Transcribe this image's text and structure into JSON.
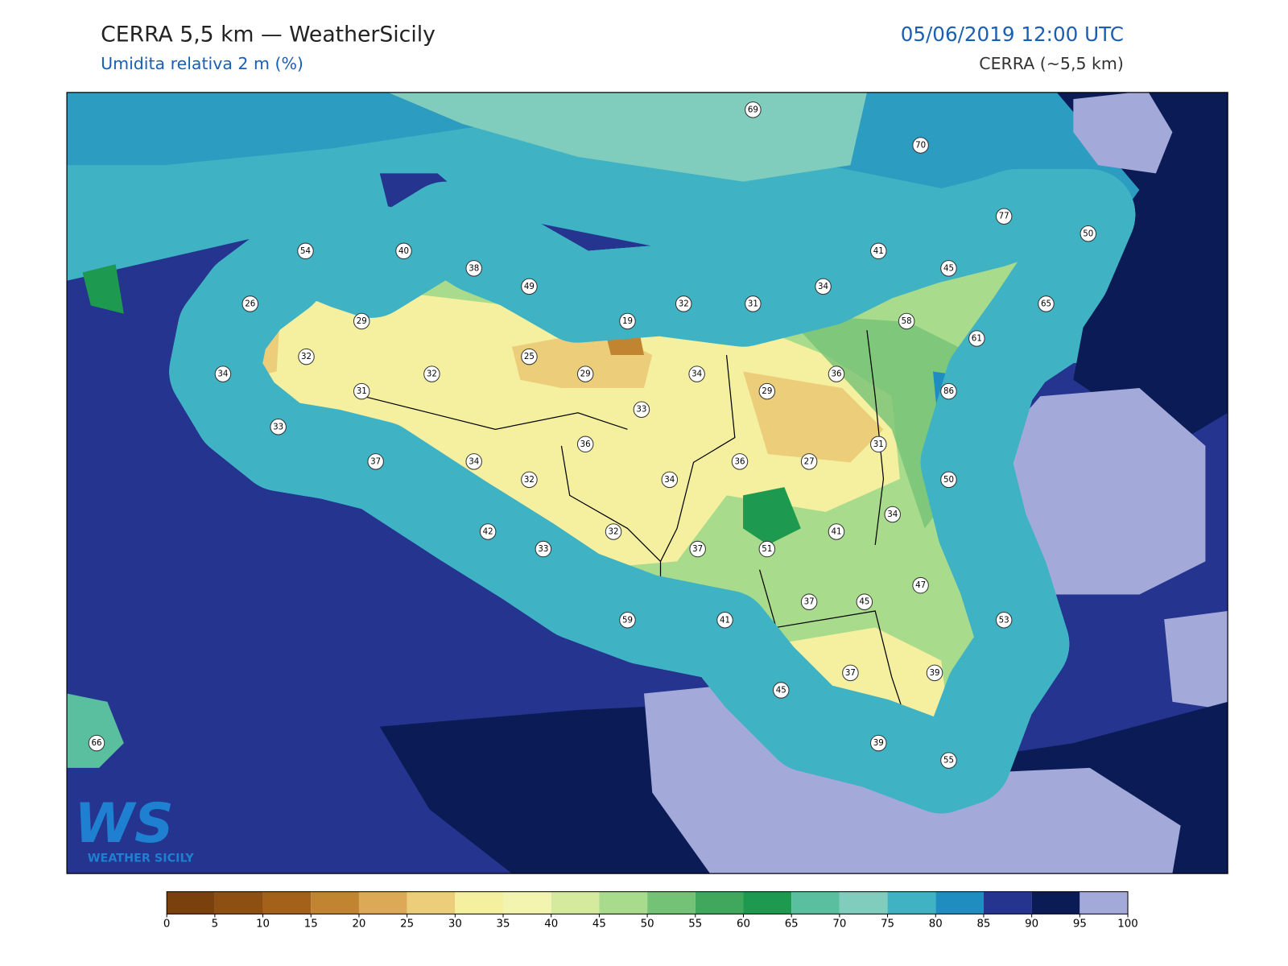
{
  "header": {
    "title": "CERRA 5,5 km — WeatherSicily",
    "subtitle": "Umidita relativa 2 m (%)",
    "date": "05/06/2019 12:00 UTC",
    "model": "CERRA (~5,5 km)"
  },
  "logo": {
    "mark": "WS",
    "text": "WEATHER SICILY"
  },
  "stations": [
    69,
    70,
    77,
    50,
    54,
    40,
    38,
    49,
    41,
    45,
    34,
    32,
    31,
    26,
    29,
    19,
    58,
    61,
    65,
    32,
    25,
    29,
    34,
    36,
    86,
    34,
    32,
    31,
    29,
    33,
    33,
    36,
    31,
    37,
    34,
    32,
    34,
    36,
    27,
    50,
    34,
    42,
    32,
    41,
    33,
    37,
    51,
    47,
    37,
    45,
    59,
    41,
    53,
    37,
    39,
    45,
    66,
    39,
    55
  ],
  "colorbar": {
    "ticks": [
      0,
      5,
      10,
      15,
      20,
      25,
      30,
      35,
      40,
      45,
      50,
      55,
      60,
      65,
      70,
      75,
      80,
      85,
      90,
      95,
      100
    ],
    "colors": [
      "#7a410d",
      "#8e4f13",
      "#a4611a",
      "#c18431",
      "#dcaa56",
      "#ecce7a",
      "#f5f0a0",
      "#f3f4b0",
      "#d6ea9e",
      "#a9db8c",
      "#74c275",
      "#40a85c",
      "#1d9a4f",
      "#5abf9e",
      "#80cdbd",
      "#3fb2c4",
      "#1f8dc0",
      "#24348f",
      "#0b1b55",
      "#a3a9d9",
      "#8f8ac6"
    ]
  }
}
